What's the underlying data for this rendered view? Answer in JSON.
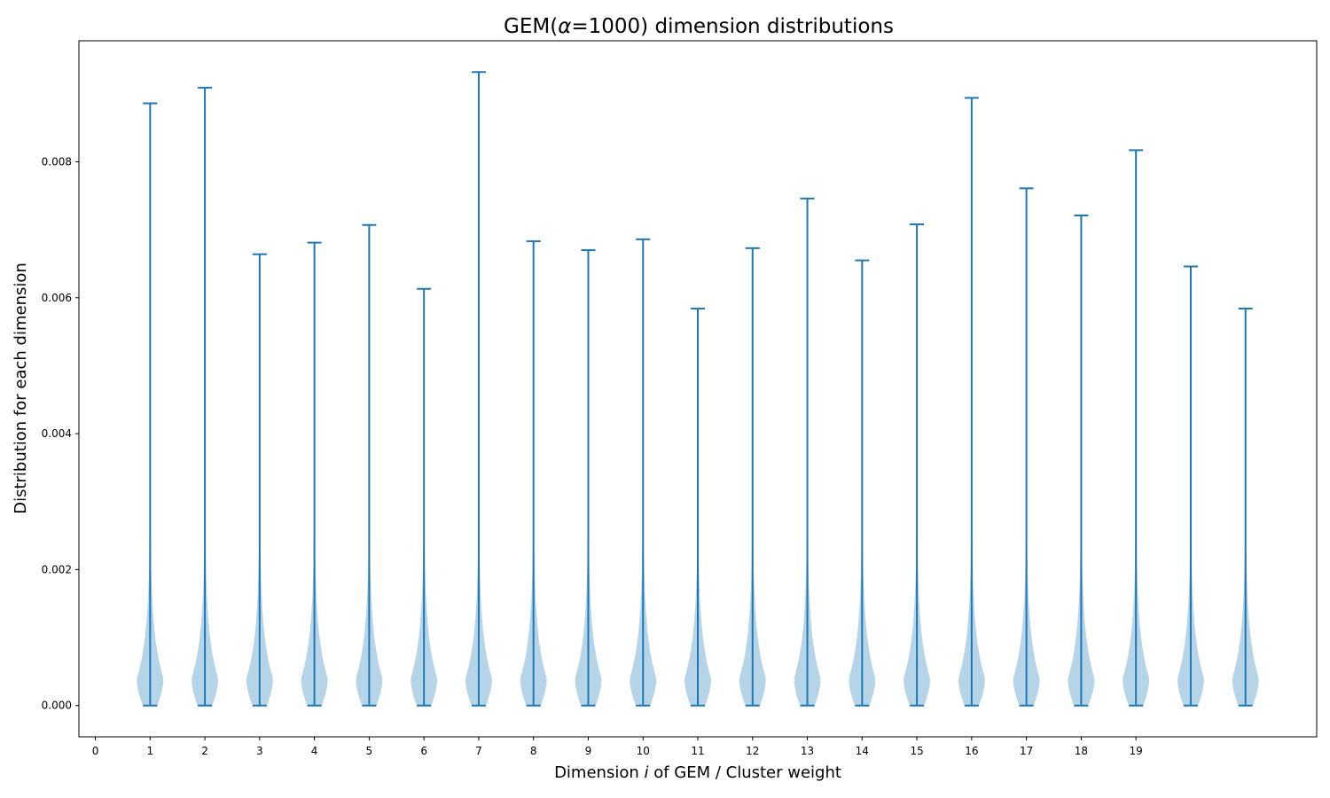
{
  "chart_data": {
    "type": "violin",
    "title_prefix": "GEM(",
    "title_symbol": "α",
    "title_suffix": "=1000) dimension distributions",
    "xlabel_prefix": "Dimension ",
    "xlabel_symbol": "i",
    "xlabel_suffix": " of GEM / Cluster weight",
    "ylabel": "Distribution for each dimension",
    "x_ticks": [
      "0",
      "1",
      "2",
      "3",
      "4",
      "5",
      "6",
      "7",
      "8",
      "9",
      "10",
      "11",
      "12",
      "13",
      "14",
      "15",
      "16",
      "17",
      "18",
      "19"
    ],
    "y_ticks": [
      "0.000",
      "0.002",
      "0.004",
      "0.006",
      "0.008"
    ],
    "xlim": [
      -0.3,
      22.3
    ],
    "ylim": [
      -0.00046,
      0.00978
    ],
    "violin_color": "#b6d4e8",
    "line_color": "#1f77b4",
    "violins": [
      {
        "position": 1,
        "max": 0.00886
      },
      {
        "position": 2,
        "max": 0.00909
      },
      {
        "position": 3,
        "max": 0.00664
      },
      {
        "position": 4,
        "max": 0.00681
      },
      {
        "position": 5,
        "max": 0.00707
      },
      {
        "position": 6,
        "max": 0.00613
      },
      {
        "position": 7,
        "max": 0.00932
      },
      {
        "position": 8,
        "max": 0.00683
      },
      {
        "position": 9,
        "max": 0.0067
      },
      {
        "position": 10,
        "max": 0.00686
      },
      {
        "position": 11,
        "max": 0.00584
      },
      {
        "position": 12,
        "max": 0.00673
      },
      {
        "position": 13,
        "max": 0.00746
      },
      {
        "position": 14,
        "max": 0.00655
      },
      {
        "position": 15,
        "max": 0.00708
      },
      {
        "position": 16,
        "max": 0.00894
      },
      {
        "position": 17,
        "max": 0.00761
      },
      {
        "position": 18,
        "max": 0.00721
      },
      {
        "position": 19,
        "max": 0.00817
      },
      {
        "position": 20,
        "max": 0.00646
      },
      {
        "position": 21,
        "max": 0.00584
      }
    ],
    "min": 0.0,
    "mode": 0.0004
  }
}
